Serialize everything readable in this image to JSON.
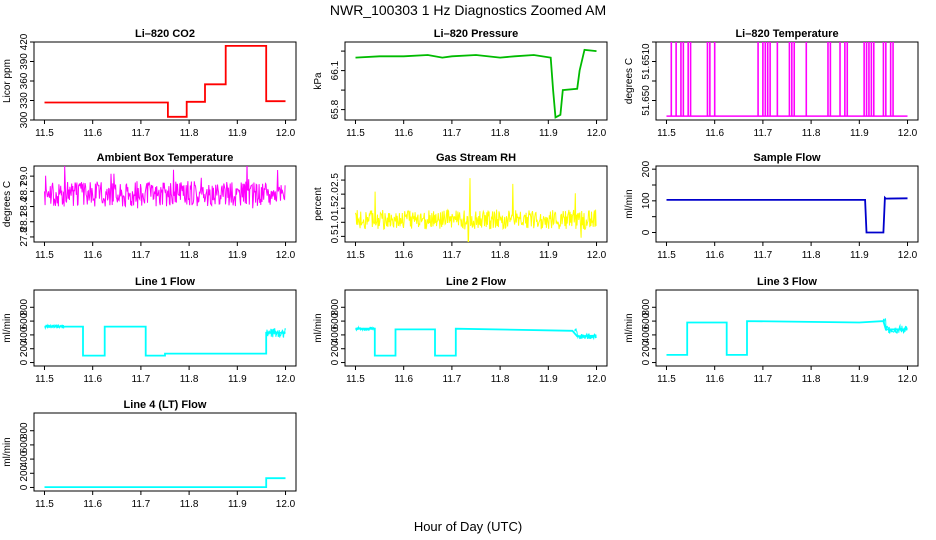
{
  "figure": {
    "title": "NWR_100303  1 Hz Diagnostics Zoomed AM",
    "xlabel": "Hour of Day (UTC)"
  },
  "chart_data": [
    {
      "type": "line",
      "title": "Li–820 CO2",
      "ylabel": "Licor ppm",
      "color": "#ff0000",
      "xlim": [
        11.5,
        12.0
      ],
      "xticks": [
        "11.5",
        "11.6",
        "11.7",
        "11.8",
        "11.9",
        "12.0"
      ],
      "ylim": [
        300,
        420
      ],
      "yticks": [
        {
          "v": 300,
          "t": "300"
        },
        {
          "v": 330,
          "t": "330"
        },
        {
          "v": 360,
          "t": "360"
        },
        {
          "v": 390,
          "t": "390"
        },
        {
          "v": 420,
          "t": "420"
        }
      ],
      "series": [
        {
          "x": [
            11.5,
            11.756,
            11.756,
            11.795,
            11.795,
            11.833,
            11.833,
            11.876,
            11.876,
            11.96,
            11.96,
            12.0
          ],
          "y": [
            327,
            327,
            305,
            305,
            328,
            328,
            355,
            355,
            414,
            414,
            329,
            329
          ]
        }
      ]
    },
    {
      "type": "line",
      "title": "Li–820 Pressure",
      "ylabel": "kPa",
      "color": "#00bb00",
      "xlim": [
        11.5,
        12.0
      ],
      "xticks": [
        "11.5",
        "11.6",
        "11.7",
        "11.8",
        "11.9",
        "12.0"
      ],
      "ylim": [
        65.72,
        66.32
      ],
      "yticks": [
        {
          "v": 65.8,
          "t": "65.8"
        },
        {
          "v": 65.95,
          "t": "65.95"
        },
        {
          "v": 66.1,
          "t": "66.1"
        },
        {
          "v": 66.25,
          "t": "66.25"
        }
      ],
      "ytick_labels_shown": [
        "65.8",
        "66.1"
      ],
      "series": [
        {
          "x": [
            11.5,
            11.55,
            11.6,
            11.65,
            11.68,
            11.7,
            11.75,
            11.8,
            11.83,
            11.87,
            11.905,
            11.91,
            11.915,
            11.925,
            11.93,
            11.96,
            11.965,
            11.975,
            12.0
          ],
          "y": [
            66.2,
            66.21,
            66.21,
            66.22,
            66.2,
            66.21,
            66.22,
            66.2,
            66.21,
            66.22,
            66.2,
            65.95,
            65.74,
            65.76,
            65.95,
            65.96,
            66.1,
            66.26,
            66.25
          ]
        }
      ]
    },
    {
      "type": "line",
      "title": "Li–820 Temperature",
      "ylabel": "degrees C",
      "color": "#ff00ff",
      "xlim": [
        11.5,
        12.0
      ],
      "xticks": [
        "11.5",
        "11.6",
        "11.7",
        "11.8",
        "11.9",
        "12.0"
      ],
      "ylim": [
        51.6495,
        51.6515
      ],
      "yticks": [
        {
          "v": 51.65,
          "t": "51.650"
        },
        {
          "v": 51.6505,
          "t": "51.6505"
        },
        {
          "v": 51.651,
          "t": "51.6510"
        },
        {
          "v": 51.6515,
          "t": "51.6515"
        }
      ],
      "ytick_labels_shown": [
        "51.650",
        "51.6510"
      ],
      "spikes_x": [
        11.51,
        11.52,
        11.53,
        11.535,
        11.545,
        11.55,
        11.585,
        11.59,
        11.6,
        11.69,
        11.7,
        11.705,
        11.71,
        11.715,
        11.73,
        11.755,
        11.76,
        11.765,
        11.79,
        11.835,
        11.84,
        11.86,
        11.87,
        11.875,
        11.91,
        11.915,
        11.92,
        11.925,
        11.93,
        11.95,
        11.955,
        11.965,
        11.97
      ]
    },
    {
      "type": "line",
      "title": "Ambient Box Temperature",
      "ylabel": "degrees C",
      "color": "#ff00ff",
      "xlim": [
        11.5,
        12.0
      ],
      "xticks": [
        "11.5",
        "11.6",
        "11.7",
        "11.8",
        "11.9",
        "12.0"
      ],
      "ylim": [
        27.7,
        29.2
      ],
      "yticks": [
        {
          "v": 27.8,
          "t": "27.8"
        },
        {
          "v": 28.1,
          "t": "28.1"
        },
        {
          "v": 28.4,
          "t": "28.4"
        },
        {
          "v": 28.7,
          "t": "28.7"
        },
        {
          "v": 29.0,
          "t": "29.0"
        }
      ],
      "noise": {
        "mean": 28.65,
        "amp": 0.25,
        "spike": 0.45
      }
    },
    {
      "type": "line",
      "title": "Gas Stream RH",
      "ylabel": "percent",
      "color": "#ffff00",
      "xlim": [
        11.5,
        12.0
      ],
      "xticks": [
        "11.5",
        "11.6",
        "11.7",
        "11.8",
        "11.9",
        "12.0"
      ],
      "ylim": [
        0.3,
        3.0
      ],
      "yticks": [
        {
          "v": 0.5,
          "t": "0.5"
        },
        {
          "v": 1.0,
          "t": "1.0"
        },
        {
          "v": 1.5,
          "t": "1.5"
        },
        {
          "v": 2.0,
          "t": "2.0"
        },
        {
          "v": 2.5,
          "t": "2.5"
        }
      ],
      "noise": {
        "mean": 1.1,
        "amp": 0.35,
        "spike": 1.5
      }
    },
    {
      "type": "line",
      "title": "Sample Flow",
      "ylabel": "ml/min",
      "color": "#0000cc",
      "xlim": [
        11.5,
        12.0
      ],
      "xticks": [
        "11.5",
        "11.6",
        "11.7",
        "11.8",
        "11.9",
        "12.0"
      ],
      "ylim": [
        -30,
        210
      ],
      "yticks": [
        {
          "v": 0,
          "t": "0"
        },
        {
          "v": 50,
          "t": "50"
        },
        {
          "v": 100,
          "t": "100"
        },
        {
          "v": 150,
          "t": "150"
        },
        {
          "v": 200,
          "t": "200"
        }
      ],
      "ytick_labels_shown": [
        "0",
        "100",
        "200"
      ],
      "series": [
        {
          "x": [
            11.5,
            11.912,
            11.915,
            11.95,
            11.953,
            11.955,
            12.0
          ],
          "y": [
            103,
            103,
            0,
            0,
            110,
            107,
            108
          ]
        }
      ]
    },
    {
      "type": "line",
      "title": "Line 1 Flow",
      "ylabel": "ml/min",
      "color": "#00ffff",
      "xlim": [
        11.5,
        12.0
      ],
      "xticks": [
        "11.5",
        "11.6",
        "11.7",
        "11.8",
        "11.9",
        "12.0"
      ],
      "ylim": [
        -50,
        1050
      ],
      "yticks": [
        {
          "v": 0,
          "t": "0"
        },
        {
          "v": 200,
          "t": "200"
        },
        {
          "v": 400,
          "t": "400"
        },
        {
          "v": 600,
          "t": "600"
        },
        {
          "v": 800,
          "t": "800"
        }
      ],
      "series": [
        {
          "x": [
            11.5,
            11.58,
            11.58,
            11.625,
            11.625,
            11.71,
            11.71,
            11.75,
            11.75,
            11.96,
            11.96,
            12.0
          ],
          "y": [
            520,
            520,
            100,
            100,
            520,
            520,
            100,
            100,
            130,
            130,
            430,
            430
          ]
        }
      ],
      "noisy_segments": [
        {
          "x0": 11.5,
          "x1": 11.54,
          "amp": 25
        },
        {
          "x0": 11.96,
          "x1": 12.0,
          "amp": 70
        }
      ]
    },
    {
      "type": "line",
      "title": "Line 2 Flow",
      "ylabel": "ml/min",
      "color": "#00ffff",
      "xlim": [
        11.5,
        12.0
      ],
      "xticks": [
        "11.5",
        "11.6",
        "11.7",
        "11.8",
        "11.9",
        "12.0"
      ],
      "ylim": [
        -50,
        1050
      ],
      "yticks": [
        {
          "v": 0,
          "t": "0"
        },
        {
          "v": 200,
          "t": "200"
        },
        {
          "v": 400,
          "t": "400"
        },
        {
          "v": 600,
          "t": "600"
        },
        {
          "v": 800,
          "t": "800"
        }
      ],
      "series": [
        {
          "x": [
            11.5,
            11.54,
            11.54,
            11.583,
            11.583,
            11.665,
            11.665,
            11.708,
            11.708,
            11.95,
            11.96,
            12.0
          ],
          "y": [
            490,
            490,
            100,
            100,
            480,
            480,
            100,
            100,
            490,
            460,
            380,
            390
          ]
        }
      ],
      "noisy_segments": [
        {
          "x0": 11.5,
          "x1": 11.54,
          "amp": 25
        },
        {
          "x0": 11.955,
          "x1": 12.0,
          "amp": 40
        }
      ]
    },
    {
      "type": "line",
      "title": "Line 3 Flow",
      "ylabel": "ml/min",
      "color": "#00ffff",
      "xlim": [
        11.5,
        12.0
      ],
      "xticks": [
        "11.5",
        "11.6",
        "11.7",
        "11.8",
        "11.9",
        "12.0"
      ],
      "ylim": [
        -50,
        1050
      ],
      "yticks": [
        {
          "v": 0,
          "t": "0"
        },
        {
          "v": 200,
          "t": "200"
        },
        {
          "v": 400,
          "t": "400"
        },
        {
          "v": 600,
          "t": "600"
        },
        {
          "v": 800,
          "t": "800"
        }
      ],
      "series": [
        {
          "x": [
            11.5,
            11.543,
            11.543,
            11.625,
            11.625,
            11.667,
            11.667,
            11.9,
            11.95,
            11.955,
            12.0
          ],
          "y": [
            110,
            110,
            580,
            580,
            110,
            110,
            600,
            580,
            600,
            480,
            480
          ]
        }
      ],
      "noisy_segments": [
        {
          "x0": 11.95,
          "x1": 12.0,
          "amp": 60
        }
      ]
    },
    {
      "type": "line",
      "title": "Line 4 (LT) Flow",
      "ylabel": "ml/min",
      "color": "#00ffff",
      "xlim": [
        11.5,
        12.0
      ],
      "xticks": [
        "11.5",
        "11.6",
        "11.7",
        "11.8",
        "11.9",
        "12.0"
      ],
      "ylim": [
        -50,
        1050
      ],
      "yticks": [
        {
          "v": 0,
          "t": "0"
        },
        {
          "v": 200,
          "t": "200"
        },
        {
          "v": 400,
          "t": "400"
        },
        {
          "v": 600,
          "t": "600"
        },
        {
          "v": 800,
          "t": "800"
        }
      ],
      "series": [
        {
          "x": [
            11.5,
            11.96,
            11.96,
            12.0
          ],
          "y": [
            5,
            5,
            130,
            130
          ]
        }
      ]
    }
  ]
}
